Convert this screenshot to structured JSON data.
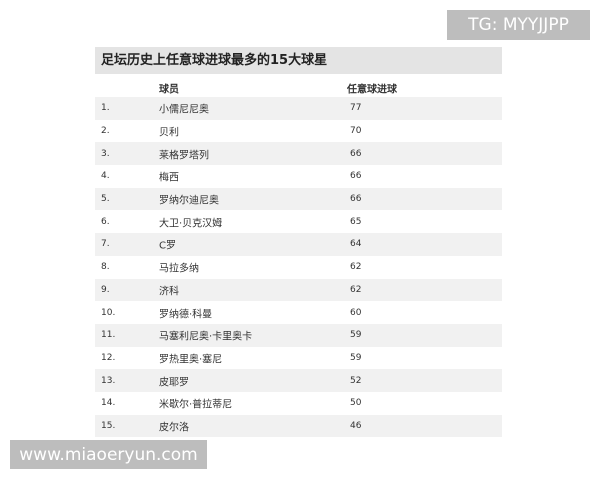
{
  "watermark_top": "TG: MYYJJPP",
  "watermark_bottom": "www.miaoeryun.com",
  "table": {
    "title": "足坛历史上任意球进球最多的15大球星",
    "headers": [
      "球员",
      "任意球进球"
    ],
    "rows": [
      [
        "1.",
        "小儒尼尼奥",
        77
      ],
      [
        "2.",
        "贝利",
        70
      ],
      [
        "3.",
        "莱格罗塔列",
        66
      ],
      [
        "4.",
        "梅西",
        66
      ],
      [
        "5.",
        "罗纳尔迪尼奥",
        66
      ],
      [
        "6.",
        "大卫·贝克汉姆",
        65
      ],
      [
        "7.",
        "C罗",
        64
      ],
      [
        "8.",
        "马拉多纳",
        62
      ],
      [
        "9.",
        "济科",
        62
      ],
      [
        "10.",
        "罗纳德·科曼",
        60
      ],
      [
        "11.",
        "马塞利尼奥·卡里奥卡",
        59
      ],
      [
        "12.",
        "罗热里奥·塞尼",
        59
      ],
      [
        "13.",
        "皮耶罗",
        52
      ],
      [
        "14.",
        "米歇尔·普拉蒂尼",
        50
      ],
      [
        "15.",
        "皮尔洛",
        46
      ]
    ]
  }
}
